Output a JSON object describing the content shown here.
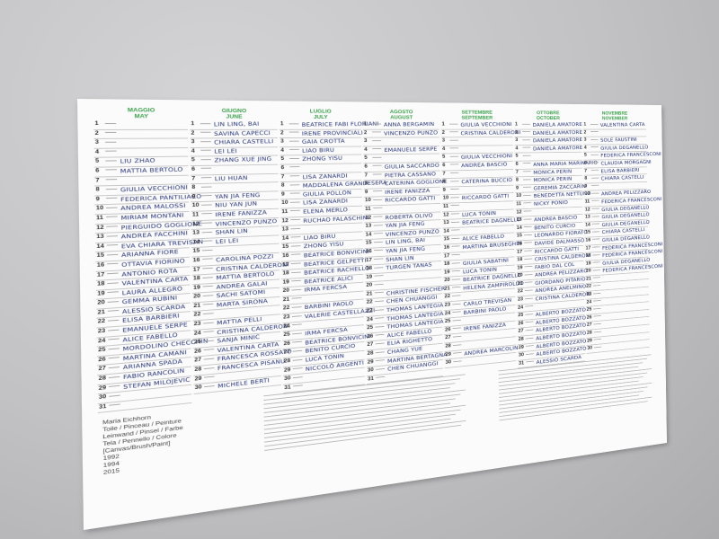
{
  "calendar": {
    "months": [
      {
        "name": "MAGGIO",
        "name_en": "MAY",
        "days": [
          1,
          2,
          3,
          4,
          5,
          6,
          7,
          8,
          9,
          10,
          11,
          12,
          13,
          14,
          15,
          16,
          17,
          18,
          19,
          20,
          21,
          22,
          23,
          24,
          25,
          26,
          27,
          28,
          29,
          30,
          31
        ],
        "names": [
          null,
          null,
          null,
          null,
          "LIU ZHAO",
          "MATTIA BERTOLO",
          null,
          "GIULIA VECCHIONI",
          "FEDERICA PANTILIACO",
          "ANDREA MALOSSI",
          "MIRIAM MONTANI",
          "PIERGUIDO GOGLIONE",
          "ANDREA FACCHINI",
          "EVA CHIARA TREVISAN",
          "ARIANNA FIORE",
          "OTTAVIA FIORINO",
          "ANTONIO ROTA",
          "VALENTINA CARTA",
          "LAURA ALLEGRO",
          "GEMMA RUBINI",
          "ALESSIO SCARDA",
          "ELISA BARBIERI",
          "EMANUELE SERPE",
          "ALICE FABELLO",
          "MORDOLINO CHECCHIN",
          "MARTINA CAMANI",
          "ARIANNA SPADA",
          "FABIO RANCOLIN",
          "STEFAN MILOJEVIC",
          null,
          null
        ]
      },
      {
        "name": "GIUGNO",
        "name_en": "JUNE",
        "days": [
          1,
          2,
          3,
          4,
          5,
          6,
          7,
          8,
          9,
          10,
          11,
          12,
          13,
          14,
          15,
          16,
          17,
          18,
          19,
          20,
          21,
          22,
          23,
          24,
          25,
          26,
          27,
          28,
          29,
          30
        ],
        "names": [
          "LIN LING, BAI",
          "SAVINA CAPECCI",
          "CHIARA CASTELLI",
          "LEI LEI",
          "ZHANG XUE JING",
          null,
          "LIU HUAN",
          null,
          "YAN JIA FENG",
          "NIU YAN JUN",
          "IRENE FANIZZA",
          "VINCENZO PUNZO",
          "SHAN LIN",
          "LEI LEI",
          null,
          "CAROLINA POZZI",
          "CRISTINA CALDERONI",
          "MATTIA BERTOLO",
          "ANDREA GALAI",
          "SACHI SATOMI",
          "MARTA SIRONA",
          null,
          "MATTIA PELLI",
          "CRISTINA CALDERONI",
          "SANJA MINIC",
          "VALENTINA CARTA",
          "FRANCESCA ROSSATO",
          "FRANCESCA PISANU",
          null,
          "MICHELE BERTI"
        ]
      },
      {
        "name": "LUGLIO",
        "name_en": "JULY",
        "days": [
          1,
          2,
          3,
          4,
          5,
          6,
          7,
          8,
          9,
          10,
          11,
          12,
          13,
          14,
          15,
          16,
          17,
          18,
          19,
          20,
          21,
          22,
          23,
          24,
          25,
          26,
          27,
          28,
          29,
          30,
          31
        ],
        "names": [
          "BEATRICE FABI FLORIANI",
          "IRENE PROVINCIALI",
          "GAIA CROTTA",
          "LIAO BIRU",
          "ZHONG YISU",
          null,
          "LISA ZANARDI",
          "MADDALENA GRANDESERA",
          "GIULIA POLLON",
          "LISA ZANARDI",
          "ELENA MERLO",
          "RUCHAO FALASCHINI",
          null,
          "LIAO BIRU",
          "ZHONG YISU",
          "BEATRICE BONVICINI",
          "BEATRICE GELPETTI",
          "BEATRICE RACHELLO",
          "BEATRICE ALICI",
          "IRMA FERCSA",
          null,
          "BARBINI PAOLO",
          "VALERIE CASTELLAZZI",
          null,
          "IRMA FERCSA",
          "BEATRICE BONVICINI",
          "BENITO CURCIO",
          "LUCA TONIN",
          "NICCOLÒ ARGENTI",
          null,
          null
        ]
      },
      {
        "name": "AGOSTO",
        "name_en": "AUGUST",
        "days": [
          1,
          2,
          3,
          4,
          5,
          6,
          7,
          8,
          9,
          10,
          11,
          12,
          13,
          14,
          15,
          16,
          17,
          18,
          19,
          20,
          21,
          22,
          23,
          24,
          25,
          26,
          27,
          28,
          29,
          30,
          31
        ],
        "names": [
          "ANNA BERGAMIN",
          "VINCENZO PUNZO",
          null,
          "EMANUELE SERPE",
          null,
          "GIULIA SACCARDO",
          "PIETRA CASSANO",
          "CATERINA GOGLIONE",
          "IRENE FANIZZA",
          "RICCARDO GATTI",
          null,
          "ROBERTA OLIVO",
          "YAN JIA FENG",
          "VINCENZO PUNZO",
          "LIN LING, BAI",
          "YAN JIA FENG",
          "SHAN LIN",
          "TURGEN TANAS",
          null,
          null,
          "CHRISTINE FISCHER",
          "CHEN CHUANGGI",
          "THOMAS LANTEGIA",
          "THOMAS LANTEGIA",
          "THOMAS LANTEGIA",
          "ALICE FABELLO",
          "ELIA RIGHETTO",
          "CHANG YUE",
          "MARTINA BERTAGNA",
          "CHEN CHUANGGI",
          null
        ]
      },
      {
        "name": "SETTEMBRE",
        "name_en": "SEPTEMBER",
        "days": [
          1,
          2,
          3,
          4,
          5,
          6,
          7,
          8,
          9,
          10,
          11,
          12,
          13,
          14,
          15,
          16,
          17,
          18,
          19,
          20,
          21,
          22,
          23,
          24,
          25,
          26,
          27,
          28,
          29,
          30
        ],
        "names": [
          "GIULIA VECCHIONI",
          "CRISTINA CALDERONI",
          null,
          null,
          "GIULIA VECCHIONI",
          "ANDREA BASCIO",
          null,
          "CATERINA BUCCIO",
          null,
          "RICCARDO GATTI",
          null,
          "LUCA TONIN",
          "BEATRICE DAGNELLO",
          null,
          "ALICE FABELLO",
          "MARTINA BRUSEGHIN",
          null,
          "GIULIA SABATINI",
          "LUCA TONIN",
          "BEATRICE DAGNELLO",
          "HELENA ZAMPIROLDO",
          null,
          "CARLO TREVISAN",
          "BARBINI PAOLO",
          null,
          "IRENE FANIZZA",
          null,
          null,
          "ANDREA MARCOLIN",
          null
        ]
      },
      {
        "name": "OTTOBRE",
        "name_en": "OCTOBER",
        "days": [
          1,
          2,
          3,
          4,
          5,
          6,
          7,
          8,
          9,
          10,
          11,
          12,
          13,
          14,
          15,
          16,
          17,
          18,
          19,
          20,
          21,
          22,
          23,
          24,
          25,
          26,
          27,
          28,
          29,
          30,
          31
        ],
        "names": [
          "DANIELA AMATORE",
          "DANIELA AMATORE",
          "DANIELA AMATORE",
          "DANIELA AMATORE",
          null,
          "ANNA MARIA MARINARIO",
          "MONICA PERIN",
          "MONICA PERIN",
          "GEREMIA ZACCARIN",
          "BENEDETTA NETTUNO",
          "NICKY PONIO",
          null,
          "ANDREA BASCIO",
          "BENITO CURCIO",
          "LEONARDO FIORATO",
          "DAVIDE DALMASSO",
          "RICCARDO GATTI",
          "CRISTINA CALDERONI",
          "FABIO DAL COL",
          "ANDREA PELIZZARO",
          "GIORDANO PITARIO",
          "ANDREA ANELMINO",
          "CRISTINA CALDERONI",
          null,
          "ALBERTO BOZZATO",
          "ALBERTO BOZZATO",
          "ALBERTO BOZZATO",
          "ALBERTO BOZZATO",
          "ALBERTO BOZZATO",
          "ALBERTO BOZZATO",
          "ALESSIO SCARDA"
        ]
      },
      {
        "name": "NOVEMBRE",
        "name_en": "NOVEMBER",
        "days": [
          1,
          2,
          3,
          4,
          5,
          6,
          7,
          8,
          9,
          10,
          11,
          12,
          13,
          14,
          15,
          16,
          17,
          18,
          19,
          20,
          21,
          22,
          23,
          24,
          25,
          26,
          27,
          28,
          29,
          30
        ],
        "names": [
          "VALENTINA CARTA",
          null,
          "SOLE FAUSTINI",
          "GIULIA DEGANELLO",
          "FEDERICA FRANCESCONI",
          "CLAUDIA MORGAGNI",
          "ELISA BARBIERI",
          "CHIARA CASTELLI",
          null,
          "ANDREA PELIZZARO",
          "FEDERICA FRANCESCONI",
          "GIULIA DEGANELLO",
          "GIULIA DEGANELLO",
          "GIULIA DEGANELLO",
          "CHIARA CASTELLI",
          "GIULIA DEGANELLO",
          "FEDERICA FRANCESCONI",
          "FEDERICA FRANCESCONI",
          "GIULIA DEGANELLO",
          "FEDERICA FRANCESCONI",
          null,
          null,
          null,
          null,
          null,
          null,
          null,
          null,
          null,
          null
        ]
      }
    ]
  },
  "colophon": {
    "artist": "Maria Eichhorn",
    "titles": [
      "Toile / Pinceau / Peinture",
      "Leinwand / Pinsel / Farbe",
      "Tela / Pennello / Colore",
      "[Canvas/Brush/Paint]"
    ],
    "years": [
      1992,
      1994,
      2015
    ]
  }
}
